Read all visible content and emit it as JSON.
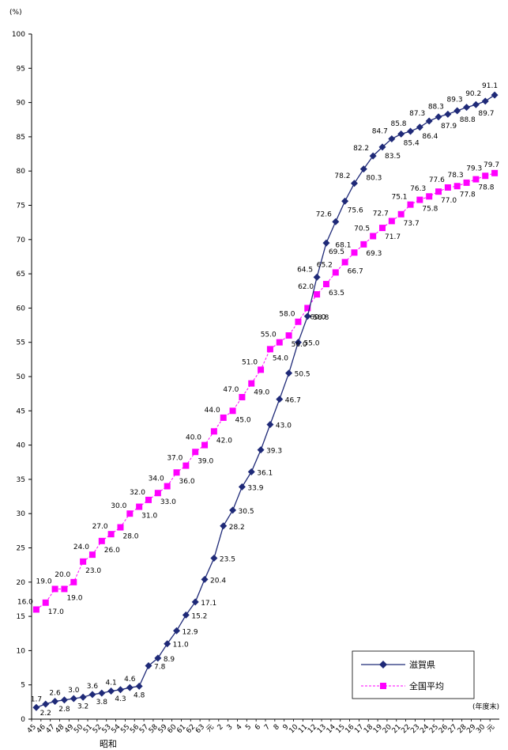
{
  "chart_data": {
    "type": "line",
    "ylabel": "(%)",
    "xunit": "(年度末)",
    "era_label": "昭和",
    "ylim": [
      0,
      100
    ],
    "yticks": [
      0,
      5,
      10,
      15,
      20,
      25,
      30,
      35,
      40,
      45,
      50,
      55,
      60,
      65,
      70,
      75,
      80,
      85,
      90,
      95,
      100
    ],
    "grid": false,
    "legend_position": "bottom-right",
    "categories": [
      "45",
      "46",
      "47",
      "48",
      "49",
      "50",
      "51",
      "52",
      "53",
      "54",
      "55",
      "56",
      "57",
      "58",
      "59",
      "60",
      "61",
      "62",
      "63",
      "元",
      "2",
      "3",
      "4",
      "5",
      "6",
      "7",
      "8",
      "9",
      "10",
      "11",
      "12",
      "13",
      "14",
      "15",
      "16",
      "17",
      "18",
      "19",
      "20",
      "21",
      "22",
      "23",
      "24",
      "25",
      "26",
      "27",
      "28",
      "29",
      "30",
      "元"
    ],
    "series": [
      {
        "name": "滋賀県",
        "color": "#1F2A78",
        "marker": "diamond",
        "values": [
          1.7,
          2.2,
          2.6,
          2.8,
          3.0,
          3.2,
          3.6,
          3.8,
          4.1,
          4.3,
          4.6,
          4.8,
          7.8,
          8.9,
          11.0,
          12.9,
          15.2,
          17.1,
          20.4,
          23.5,
          28.2,
          30.5,
          33.9,
          36.1,
          39.3,
          43.0,
          46.7,
          50.5,
          55.0,
          58.8,
          64.5,
          69.5,
          72.6,
          75.6,
          78.2,
          80.3,
          82.2,
          83.5,
          84.7,
          85.4,
          85.8,
          86.4,
          87.3,
          87.9,
          88.3,
          88.8,
          89.3,
          89.7,
          90.2,
          91.1
        ]
      },
      {
        "name": "全国平均",
        "color": "#FF00FF",
        "marker": "square",
        "values": [
          16.0,
          17.0,
          19.0,
          19.0,
          20.0,
          23.0,
          24.0,
          26.0,
          27.0,
          28.0,
          30.0,
          31.0,
          32.0,
          33.0,
          34.0,
          36.0,
          37.0,
          39.0,
          40.0,
          42.0,
          44.0,
          45.0,
          47.0,
          49.0,
          51.0,
          54.0,
          55.0,
          56.0,
          58.0,
          60.0,
          62.0,
          63.5,
          65.2,
          66.7,
          68.1,
          69.3,
          70.5,
          71.7,
          72.7,
          73.7,
          75.1,
          75.8,
          76.3,
          77.0,
          77.6,
          77.8,
          78.3,
          78.8,
          79.3,
          79.7
        ]
      }
    ],
    "labels": {
      "shiga": [
        "1.7",
        "2.2",
        "2.6",
        "2.8",
        "3.0",
        "3.2",
        "3.6",
        "3.8",
        "4.1",
        "4.3",
        "4.6",
        "4.8",
        "7.8",
        "8.9",
        "11.0",
        "12.9",
        "15.2",
        "17.1",
        "20.4",
        "23.5",
        "28.2",
        "30.5",
        "33.9",
        "36.1",
        "39.3",
        "43.0",
        "46.7",
        "50.5",
        "55.0",
        "58.8",
        "64.5",
        "69.5",
        "72.6",
        "75.6",
        "78.2",
        "80.3",
        "82.2",
        "83.5",
        "84.7",
        "85.4",
        "85.8",
        "86.4",
        "87.3",
        "87.9",
        "88.3",
        "88.8",
        "89.3",
        "89.7",
        "90.2",
        "91.1"
      ],
      "national": [
        "16.0",
        "17.0",
        "19.0",
        "19.0",
        "20.0",
        "23.0",
        "24.0",
        "26.0",
        "27.0",
        "28.0",
        "30.0",
        "31.0",
        "32.0",
        "33.0",
        "34.0",
        "36.0",
        "37.0",
        "39.0",
        "40.0",
        "42.0",
        "44.0",
        "45.0",
        "47.0",
        "49.0",
        "51.0",
        "54.0",
        "55.0",
        "56.0",
        "58.0",
        "60.0",
        "62.0",
        "63.5",
        "65.2",
        "66.7",
        "68.1",
        "69.3",
        "70.5",
        "71.7",
        "72.7",
        "73.7",
        "75.1",
        "75.8",
        "76.3",
        "77.0",
        "77.6",
        "77.8",
        "78.3",
        "78.8",
        "79.3",
        "79.7"
      ]
    }
  }
}
